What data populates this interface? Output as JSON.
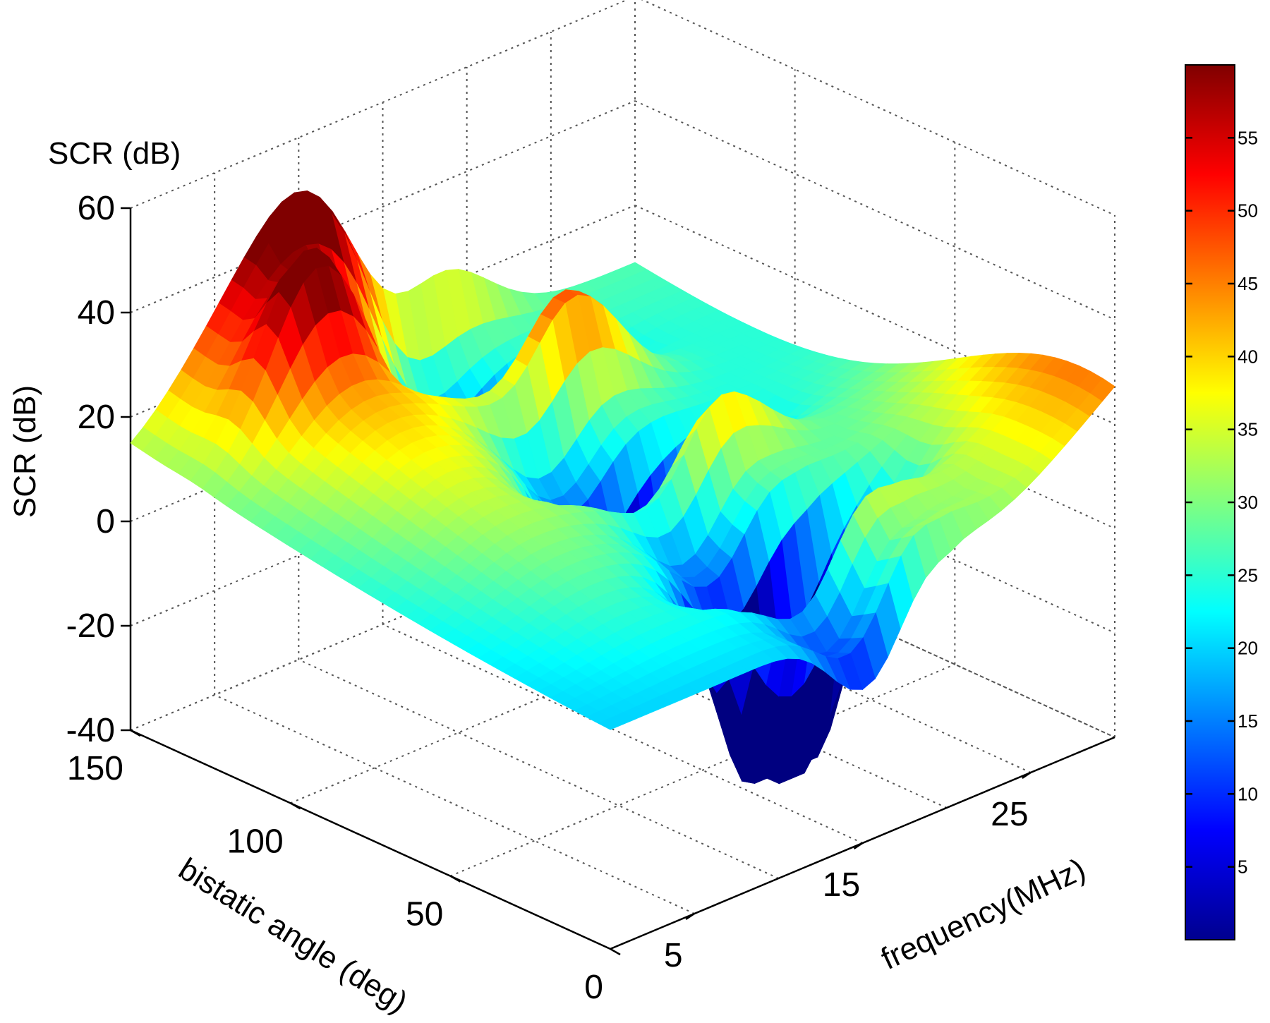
{
  "chart_data": {
    "type": "surface",
    "title": "",
    "zlabel_top": "SCR (dB)",
    "zlabel": "SCR (dB)",
    "xlabel": "bistatic angle (deg)",
    "ylabel": "frequency(MHz)",
    "z_ticks": [
      "60",
      "40",
      "20",
      "0",
      "-20",
      "-40"
    ],
    "z_tick_values": [
      60,
      40,
      20,
      0,
      -20,
      -40
    ],
    "zlim": [
      -40,
      60
    ],
    "angle_ticks": [
      "150",
      "100",
      "50",
      "0"
    ],
    "angle_tick_values": [
      150,
      100,
      50,
      0
    ],
    "angle_lim": [
      0,
      150
    ],
    "freq_ticks": [
      "5",
      "15",
      "25"
    ],
    "freq_tick_values": [
      5,
      15,
      25
    ],
    "freq_lim": [
      0,
      30
    ],
    "grid": true,
    "colormap": "jet",
    "colorbar": {
      "ticks": [
        "55",
        "50",
        "45",
        "40",
        "35",
        "30",
        "25",
        "20",
        "15",
        "10",
        "5"
      ],
      "tick_values": [
        55,
        50,
        45,
        40,
        35,
        30,
        25,
        20,
        15,
        10,
        5
      ],
      "range": [
        0,
        60
      ],
      "placement": "right"
    }
  }
}
